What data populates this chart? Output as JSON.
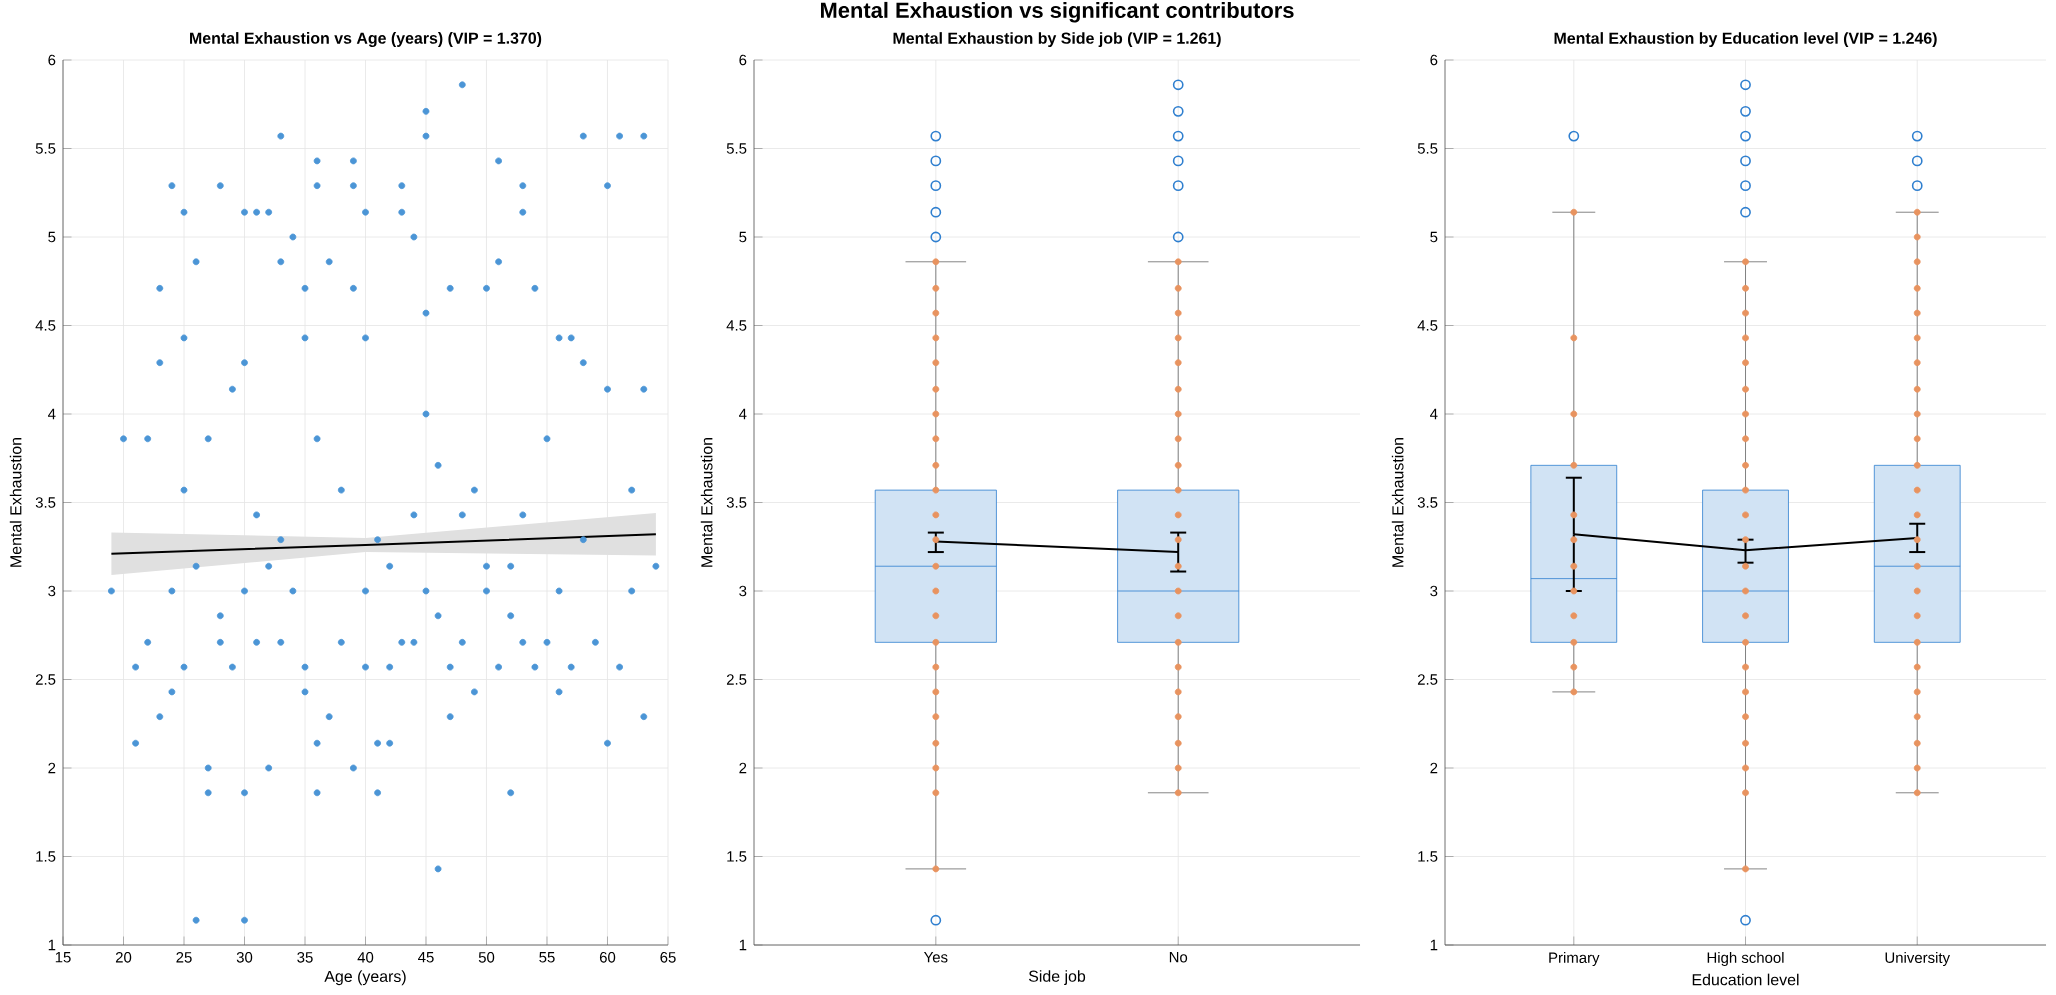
{
  "chart_data": [
    {
      "type": "scatter",
      "title": "Mental Exhaustion vs Age (years) (VIP = 1.370)",
      "xlabel": "Age (years)",
      "ylabel": "Mental Exhaustion",
      "xlim": [
        15,
        65
      ],
      "xticks": [
        15,
        20,
        25,
        30,
        35,
        40,
        45,
        50,
        55,
        60,
        65
      ],
      "ylim": [
        1,
        6
      ],
      "yticks": [
        1,
        1.5,
        2,
        2.5,
        3,
        3.5,
        4,
        4.5,
        5,
        5.5,
        6
      ],
      "grid": true,
      "series": [
        {
          "color": "#4b95d6",
          "marker": "circle",
          "x": [
            19,
            20,
            21,
            21,
            22,
            22,
            23,
            23,
            23,
            24,
            24,
            25,
            25,
            25,
            25,
            26,
            26,
            27,
            27,
            28,
            28,
            29,
            30,
            30,
            30,
            30,
            31,
            31,
            32,
            32,
            33,
            33,
            34,
            34,
            35,
            35,
            36,
            36,
            36,
            36,
            37,
            37,
            38,
            39,
            39,
            39,
            40,
            40,
            41,
            41,
            42,
            42,
            43,
            43,
            44,
            44,
            45,
            45,
            45,
            45,
            46,
            46,
            47,
            47,
            48,
            48,
            49,
            49,
            50,
            50,
            51,
            51,
            52,
            52,
            53,
            53,
            54,
            54,
            55,
            55,
            56,
            56,
            57,
            57,
            58,
            58,
            59,
            60,
            60,
            60,
            61,
            61,
            62,
            62,
            63,
            63,
            63,
            64,
            28,
            33,
            38,
            43,
            48,
            53,
            24,
            30,
            50,
            56,
            26,
            32,
            42,
            52,
            29,
            35,
            40,
            47,
            51,
            33,
            41,
            58,
            44,
            31,
            36,
            27,
            45,
            40,
            46,
            35,
            39,
            53
          ],
          "values": [
            3,
            3.86,
            2.57,
            2.14,
            3.86,
            2.71,
            4.71,
            4.29,
            2.29,
            5.29,
            2.43,
            5.14,
            4.43,
            3.57,
            2.57,
            4.86,
            1.14,
            2,
            1.86,
            5.29,
            2.86,
            4.14,
            5.14,
            4.29,
            1.86,
            1.14,
            5.14,
            2.71,
            5.14,
            2,
            5.57,
            4.86,
            5,
            3,
            4.43,
            2.43,
            5.43,
            5.29,
            2.14,
            1.86,
            4.86,
            2.29,
            3.57,
            5.43,
            5.29,
            2,
            5.14,
            3,
            1.86,
            2.14,
            2.14,
            2.57,
            5.29,
            5.14,
            5,
            2.71,
            5.71,
            5.57,
            4.57,
            3,
            1.43,
            2.86,
            4.71,
            2.29,
            5.86,
            3.43,
            3.57,
            2.43,
            4.71,
            3.14,
            5.43,
            4.86,
            1.86,
            2.86,
            5.29,
            5.14,
            4.71,
            2.57,
            3.86,
            2.71,
            4.43,
            2.43,
            4.43,
            2.57,
            5.57,
            4.29,
            2.71,
            5.29,
            2.14,
            4.14,
            5.57,
            2.57,
            3.57,
            3,
            5.57,
            2.29,
            4.14,
            3.14,
            2.71,
            2.71,
            2.71,
            2.71,
            2.71,
            2.71,
            3,
            3,
            3,
            3,
            3.14,
            3.14,
            3.14,
            3.14,
            2.57,
            2.57,
            2.57,
            2.57,
            2.57,
            3.29,
            3.29,
            3.29,
            3.43,
            3.43,
            3.86,
            3.86,
            4,
            4.43,
            3.71,
            4.71,
            4.71,
            3.43
          ]
        },
        {
          "type": "line",
          "color": "#000000",
          "marker": "none",
          "x": [
            19,
            40,
            64
          ],
          "values": [
            3.21,
            3.26,
            3.32
          ],
          "lower": [
            3.09,
            3.22,
            3.2
          ],
          "upper": [
            3.33,
            3.3,
            3.44
          ]
        }
      ]
    },
    {
      "type": "box",
      "title": "Mental Exhaustion vs significant contributors",
      "subtitle": "Mental Exhaustion by Side job (VIP = 1.261)",
      "xlabel": "Side job",
      "ylabel": "Mental Exhaustion",
      "categories": [
        "Yes",
        "No"
      ],
      "ylim": [
        1,
        6
      ],
      "yticks": [
        1,
        1.5,
        2,
        2.5,
        3,
        3.5,
        4,
        4.5,
        5,
        5.5,
        6
      ],
      "grid": true,
      "series": [
        {
          "color": "#2f7fcf",
          "boxes": [
            {
              "low": 1.43,
              "q1": 2.71,
              "median": 3.14,
              "q3": 3.57,
              "high": 4.86,
              "outliers": [
                5,
                5.14,
                5.29,
                5.43,
                5.57,
                1.14
              ]
            },
            {
              "low": 1.86,
              "q1": 2.71,
              "median": 3,
              "q3": 3.57,
              "high": 4.86,
              "outliers": [
                5,
                5.29,
                5.43,
                5.57,
                5.71,
                5.86
              ]
            }
          ]
        },
        {
          "type": "scatter",
          "color": "#e8935f",
          "marker": "circle",
          "x": [
            "Yes",
            "Yes",
            "Yes",
            "Yes",
            "Yes",
            "Yes",
            "Yes",
            "Yes",
            "Yes",
            "Yes",
            "Yes",
            "Yes",
            "Yes",
            "Yes",
            "Yes",
            "Yes",
            "Yes",
            "Yes",
            "Yes",
            "Yes",
            "Yes",
            "Yes",
            "Yes",
            "No",
            "No",
            "No",
            "No",
            "No",
            "No",
            "No",
            "No",
            "No",
            "No",
            "No",
            "No",
            "No",
            "No",
            "No",
            "No",
            "No",
            "No",
            "No",
            "No",
            "No",
            "No"
          ],
          "values": [
            1.43,
            1.86,
            2,
            2.14,
            2.29,
            2.43,
            2.57,
            2.71,
            2.86,
            3,
            3.14,
            3.29,
            3.43,
            3.57,
            3.71,
            3.86,
            4,
            4.14,
            4.29,
            4.43,
            4.57,
            4.71,
            4.86,
            1.86,
            2,
            2.14,
            2.29,
            2.43,
            2.57,
            2.71,
            2.86,
            3,
            3.14,
            3.29,
            3.43,
            3.57,
            3.71,
            3.86,
            4,
            4.14,
            4.29,
            4.43,
            4.57,
            4.71,
            4.86
          ]
        },
        {
          "type": "line",
          "color": "#000000",
          "marker": "none",
          "values": [
            3.28,
            3.22
          ],
          "errors": [
            [
              3.22,
              3.33
            ],
            [
              3.11,
              3.33
            ]
          ]
        }
      ]
    },
    {
      "type": "box",
      "title": "Mental Exhaustion by Education level (VIP = 1.246)",
      "xlabel": "Education level",
      "ylabel": "Mental Exhaustion",
      "categories": [
        "Primary",
        "High school",
        "University"
      ],
      "ylim": [
        1,
        6
      ],
      "yticks": [
        1,
        1.5,
        2,
        2.5,
        3,
        3.5,
        4,
        4.5,
        5,
        5.5,
        6
      ],
      "grid": true,
      "series": [
        {
          "color": "#2f7fcf",
          "boxes": [
            {
              "low": 2.43,
              "q1": 2.71,
              "median": 3.07,
              "q3": 3.71,
              "high": 5.14,
              "outliers": [
                5.57
              ]
            },
            {
              "low": 1.43,
              "q1": 2.71,
              "median": 3,
              "q3": 3.57,
              "high": 4.86,
              "outliers": [
                5.14,
                5.29,
                5.43,
                5.57,
                5.71,
                5.86,
                1.14
              ]
            },
            {
              "low": 1.86,
              "q1": 2.71,
              "median": 3.14,
              "q3": 3.71,
              "high": 5.14,
              "outliers": [
                5.29,
                5.43,
                5.57
              ]
            }
          ]
        },
        {
          "type": "scatter",
          "color": "#e8935f",
          "marker": "circle",
          "x": [
            "Primary",
            "Primary",
            "Primary",
            "Primary",
            "Primary",
            "Primary",
            "Primary",
            "Primary",
            "Primary",
            "Primary",
            "Primary",
            "Primary",
            "High school",
            "High school",
            "High school",
            "High school",
            "High school",
            "High school",
            "High school",
            "High school",
            "High school",
            "High school",
            "High school",
            "High school",
            "High school",
            "High school",
            "High school",
            "High school",
            "High school",
            "High school",
            "High school",
            "High school",
            "High school",
            "High school",
            "High school",
            "University",
            "University",
            "University",
            "University",
            "University",
            "University",
            "University",
            "University",
            "University",
            "University",
            "University",
            "University",
            "University",
            "University",
            "University",
            "University",
            "University",
            "University",
            "University",
            "University",
            "University",
            "University",
            "University",
            "University"
          ],
          "values": [
            2.43,
            2.57,
            2.71,
            2.86,
            3,
            3.14,
            3.29,
            3.43,
            3.71,
            4,
            4.43,
            5.14,
            1.43,
            1.86,
            2,
            2.14,
            2.29,
            2.43,
            2.57,
            2.71,
            2.86,
            3,
            3.14,
            3.29,
            3.43,
            3.57,
            3.71,
            3.86,
            4,
            4.14,
            4.29,
            4.43,
            4.57,
            4.71,
            4.86,
            1.86,
            2,
            2.14,
            2.29,
            2.43,
            2.57,
            2.71,
            2.86,
            3,
            3.14,
            3.29,
            3.43,
            3.57,
            3.71,
            3.86,
            4,
            4.14,
            4.29,
            4.43,
            4.57,
            4.71,
            4.86,
            5,
            5.14
          ]
        },
        {
          "type": "line",
          "color": "#000000",
          "marker": "none",
          "values": [
            3.32,
            3.23,
            3.3
          ],
          "errors": [
            [
              3.0,
              3.64
            ],
            [
              3.16,
              3.29
            ],
            [
              3.22,
              3.38
            ]
          ]
        }
      ]
    }
  ]
}
